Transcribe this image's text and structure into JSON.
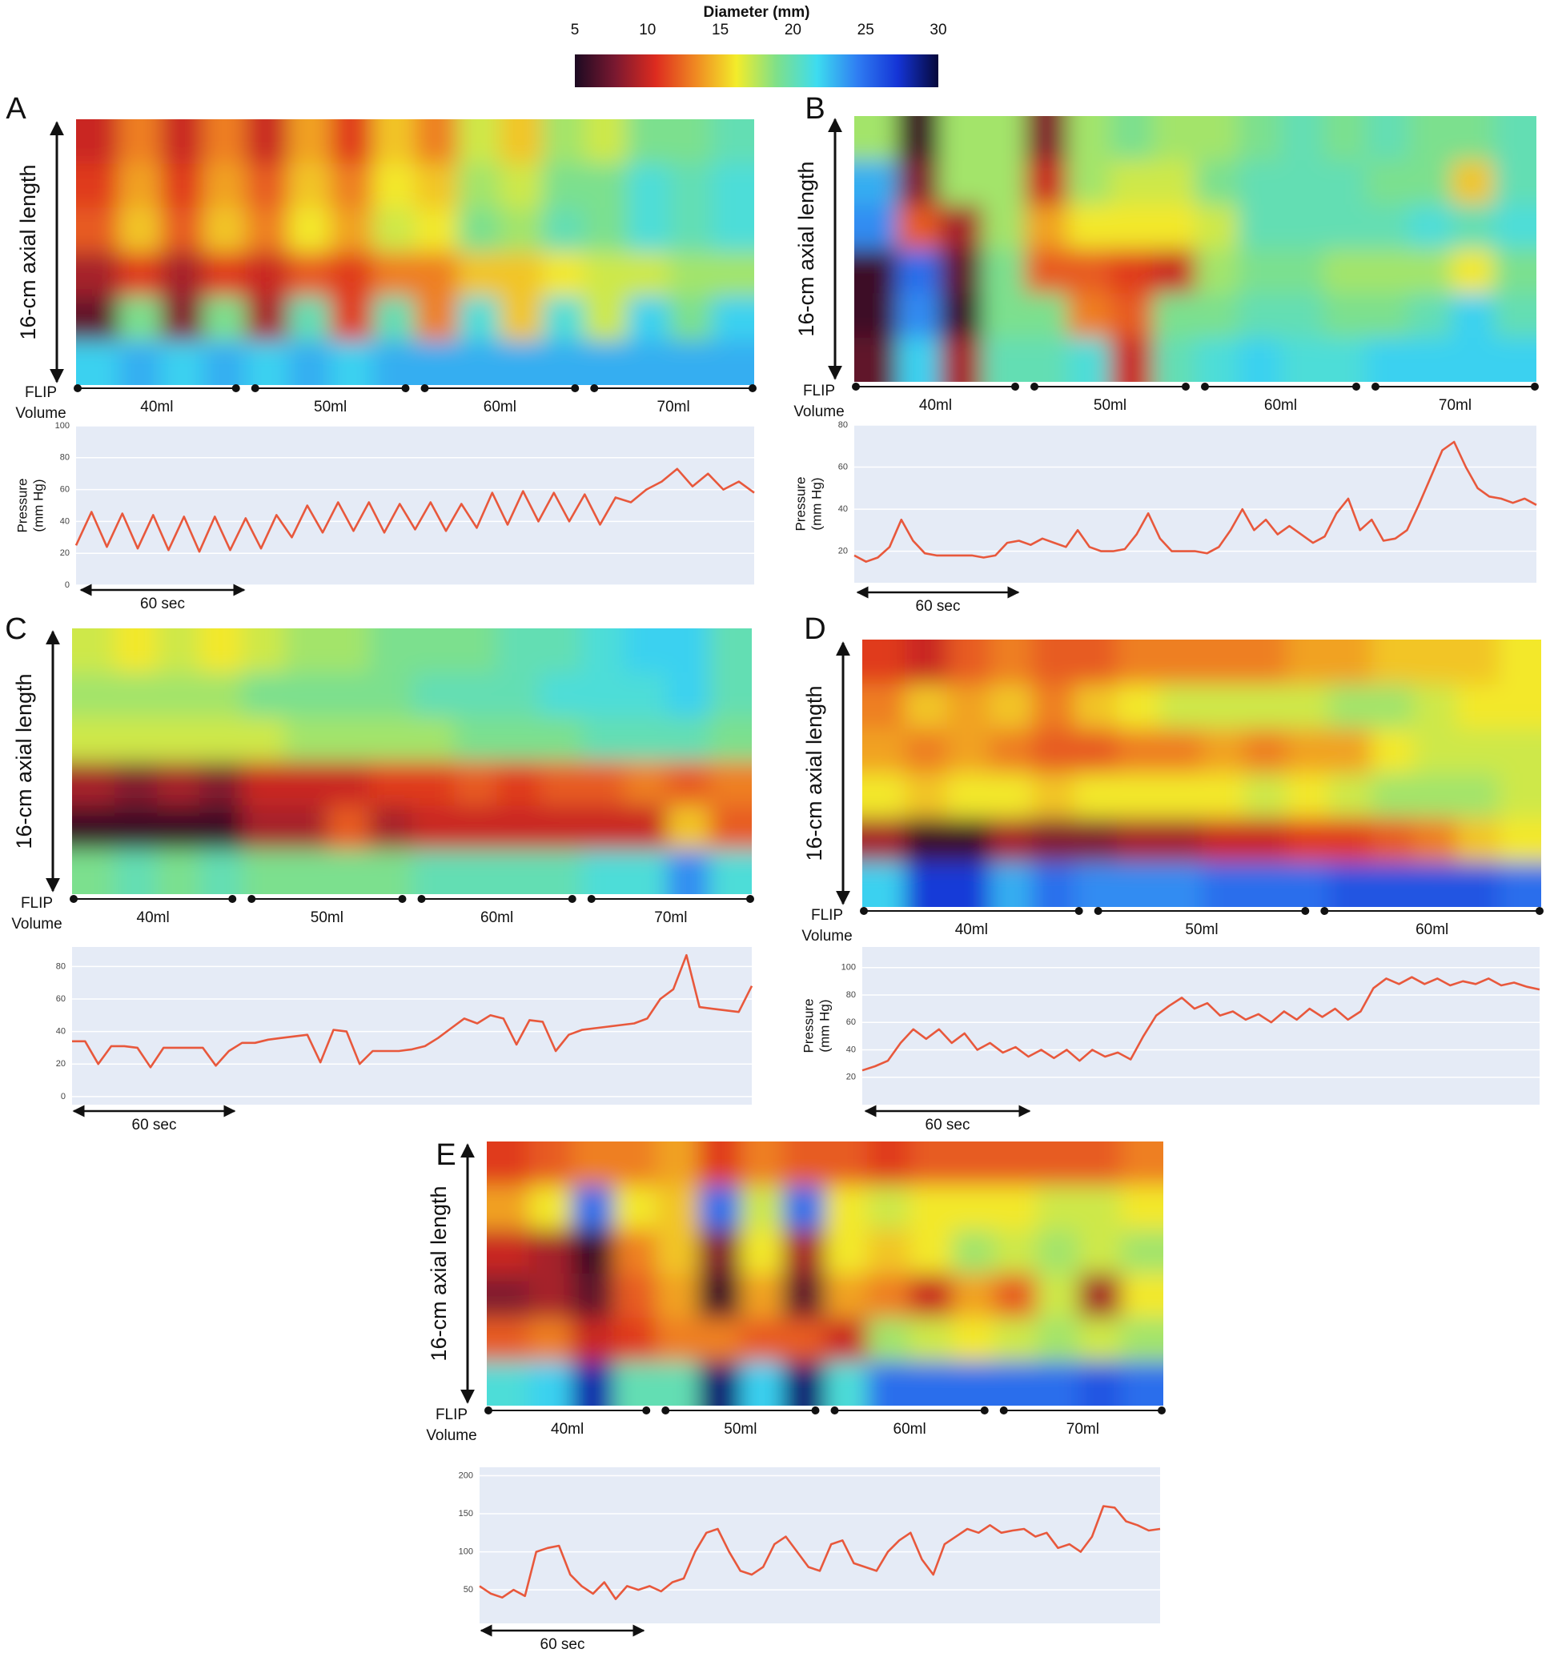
{
  "chart_data": [
    {
      "type": "colorbar",
      "title": "Diameter (mm)",
      "ticks": [
        5,
        10,
        15,
        20,
        25,
        30
      ],
      "lim": [
        5,
        30
      ],
      "colors": [
        "#1c0a22",
        "#7a1830",
        "#dd2b1f",
        "#f08a22",
        "#f3ec2a",
        "#7ee08a",
        "#3ddcf0",
        "#2f7df2",
        "#1434d6",
        "#06083a"
      ]
    },
    {
      "type": "panel",
      "label": "A",
      "heatmap": {
        "ylabel": "16-cm axial length",
        "values": [
          [
            10,
            13,
            10,
            13,
            10,
            14,
            11,
            15,
            13,
            17,
            15,
            18,
            17,
            19,
            19,
            20
          ],
          [
            11,
            14,
            11,
            14,
            12,
            15,
            13,
            16,
            15,
            18,
            17,
            19,
            19,
            21,
            20,
            21
          ],
          [
            12,
            15,
            12,
            15,
            13,
            16,
            14,
            17,
            16,
            19,
            18,
            20,
            19,
            21,
            20,
            21
          ],
          [
            9,
            11,
            9,
            11,
            10,
            12,
            11,
            13,
            13,
            15,
            15,
            16,
            17,
            17,
            18,
            18
          ],
          [
            7,
            19,
            8,
            19,
            9,
            20,
            11,
            20,
            13,
            21,
            15,
            21,
            17,
            22,
            19,
            22
          ],
          [
            22,
            23,
            22,
            23,
            22,
            23,
            22,
            23,
            23,
            23,
            23,
            23,
            23,
            23,
            23,
            23
          ]
        ]
      },
      "volume": {
        "label": [
          "FLIP",
          "Volume"
        ],
        "segments": [
          "40ml",
          "50ml",
          "60ml",
          "70ml"
        ]
      },
      "pressure": {
        "ylabel": [
          "Pressure",
          "(mm Hg)"
        ],
        "color": "#e8583c",
        "ylim": [
          0,
          100
        ],
        "yticks": [
          0,
          20,
          40,
          60,
          80,
          100
        ],
        "grid": true,
        "values": [
          25,
          46,
          24,
          45,
          23,
          44,
          22,
          43,
          21,
          43,
          22,
          42,
          23,
          44,
          30,
          50,
          33,
          52,
          34,
          52,
          33,
          51,
          35,
          52,
          34,
          51,
          36,
          58,
          38,
          59,
          40,
          58,
          40,
          57,
          38,
          55,
          52,
          60,
          65,
          73,
          62,
          70,
          60,
          65,
          58
        ]
      },
      "scale_bar": "60 sec"
    },
    {
      "type": "panel",
      "label": "B",
      "heatmap": {
        "ylabel": "16-cm axial length",
        "values": [
          [
            18,
            6,
            18,
            18,
            8,
            18,
            19,
            18,
            18,
            19,
            20,
            19,
            20,
            19,
            19,
            20
          ],
          [
            23,
            8,
            18,
            18,
            10,
            18,
            17,
            17,
            19,
            20,
            20,
            20,
            19,
            19,
            15,
            20
          ],
          [
            24,
            12,
            9,
            18,
            14,
            16,
            16,
            16,
            17,
            20,
            20,
            20,
            20,
            21,
            20,
            21
          ],
          [
            6,
            25,
            7,
            19,
            12,
            12,
            11,
            10,
            18,
            19,
            19,
            18,
            18,
            18,
            16,
            19
          ],
          [
            6,
            24,
            6,
            19,
            19,
            13,
            12,
            19,
            19,
            20,
            20,
            19,
            19,
            20,
            22,
            20
          ],
          [
            7,
            22,
            9,
            20,
            20,
            21,
            10,
            20,
            21,
            22,
            21,
            21,
            22,
            22,
            22,
            22
          ]
        ]
      },
      "volume": {
        "label": [
          "FLIP",
          "Volume"
        ],
        "segments": [
          "40ml",
          "50ml",
          "60ml",
          "70ml"
        ]
      },
      "pressure": {
        "ylabel": [
          "Pressure",
          "(mm Hg)"
        ],
        "color": "#e8583c",
        "ylim": [
          5,
          80
        ],
        "yticks": [
          20,
          40,
          60,
          80
        ],
        "grid": true,
        "values": [
          18,
          15,
          17,
          22,
          35,
          25,
          19,
          18,
          18,
          18,
          18,
          17,
          18,
          24,
          25,
          23,
          26,
          24,
          22,
          30,
          22,
          20,
          20,
          21,
          28,
          38,
          26,
          20,
          20,
          20,
          19,
          22,
          30,
          40,
          30,
          35,
          28,
          32,
          28,
          24,
          27,
          38,
          45,
          30,
          35,
          25,
          26,
          30,
          42,
          55,
          68,
          72,
          60,
          50,
          46,
          45,
          43,
          45,
          42
        ]
      },
      "scale_bar": "60 sec"
    },
    {
      "type": "panel",
      "label": "C",
      "heatmap": {
        "ylabel": "16-cm axial length",
        "values": [
          [
            17,
            16,
            17,
            16,
            17,
            18,
            18,
            19,
            19,
            19,
            20,
            20,
            21,
            22,
            22,
            20
          ],
          [
            18,
            18,
            18,
            18,
            19,
            19,
            19,
            19,
            20,
            20,
            20,
            21,
            21,
            21,
            22,
            20
          ],
          [
            17,
            17,
            17,
            17,
            17,
            18,
            18,
            18,
            18,
            19,
            19,
            19,
            20,
            20,
            20,
            19
          ],
          [
            9,
            8,
            9,
            8,
            10,
            10,
            10,
            11,
            11,
            12,
            11,
            12,
            12,
            13,
            12,
            13
          ],
          [
            6,
            6,
            6,
            6,
            9,
            9,
            12,
            9,
            10,
            10,
            10,
            10,
            10,
            10,
            15,
            12
          ],
          [
            19,
            20,
            19,
            20,
            19,
            19,
            19,
            19,
            20,
            20,
            20,
            20,
            21,
            21,
            24,
            21
          ]
        ]
      },
      "volume": {
        "label": [
          "FLIP",
          "Volume"
        ],
        "segments": [
          "40ml",
          "50ml",
          "60ml",
          "70ml"
        ]
      },
      "pressure": {
        "color": "#e8583c",
        "ylim": [
          -5,
          92
        ],
        "yticks": [
          0,
          20,
          40,
          60,
          80
        ],
        "grid": true,
        "values": [
          34,
          34,
          20,
          31,
          31,
          30,
          18,
          30,
          30,
          30,
          30,
          19,
          28,
          33,
          33,
          35,
          36,
          37,
          38,
          21,
          41,
          40,
          20,
          28,
          28,
          28,
          29,
          31,
          36,
          42,
          48,
          45,
          50,
          48,
          32,
          47,
          46,
          28,
          38,
          41,
          42,
          43,
          44,
          45,
          48,
          60,
          66,
          87,
          55,
          54,
          53,
          52,
          68
        ]
      },
      "scale_bar": "60 sec"
    },
    {
      "type": "panel",
      "label": "D",
      "heatmap": {
        "ylabel": "16-cm axial length",
        "values": [
          [
            11,
            10,
            12,
            13,
            12,
            12,
            13,
            13,
            13,
            13,
            14,
            14,
            15,
            15,
            15,
            16
          ],
          [
            13,
            15,
            14,
            15,
            13,
            15,
            16,
            17,
            17,
            17,
            17,
            18,
            18,
            17,
            16,
            16
          ],
          [
            14,
            13,
            14,
            13,
            12,
            12,
            13,
            13,
            14,
            13,
            14,
            14,
            16,
            17,
            17,
            17
          ],
          [
            16,
            15,
            16,
            16,
            15,
            16,
            16,
            16,
            16,
            17,
            16,
            17,
            18,
            18,
            18,
            17
          ],
          [
            9,
            6,
            6,
            9,
            8,
            8,
            9,
            9,
            10,
            10,
            11,
            11,
            12,
            13,
            15,
            16
          ],
          [
            22,
            27,
            27,
            23,
            25,
            24,
            24,
            24,
            25,
            25,
            25,
            26,
            26,
            26,
            26,
            25
          ]
        ]
      },
      "volume": {
        "label": [
          "FLIP",
          "Volume"
        ],
        "segments": [
          "40ml",
          "50ml",
          "60ml"
        ]
      },
      "pressure": {
        "ylabel": [
          "Pressure",
          "(mm Hg)"
        ],
        "color": "#e8583c",
        "ylim": [
          0,
          115
        ],
        "yticks": [
          20,
          40,
          60,
          80,
          100
        ],
        "grid": true,
        "values": [
          25,
          28,
          32,
          45,
          55,
          48,
          55,
          45,
          52,
          40,
          45,
          38,
          42,
          35,
          40,
          34,
          40,
          32,
          40,
          35,
          38,
          33,
          50,
          65,
          72,
          78,
          70,
          74,
          65,
          68,
          62,
          66,
          60,
          68,
          62,
          70,
          64,
          70,
          62,
          68,
          85,
          92,
          88,
          93,
          88,
          92,
          87,
          90,
          88,
          92,
          87,
          89,
          86,
          84
        ]
      },
      "scale_bar": "60 sec"
    },
    {
      "type": "panel",
      "label": "E",
      "heatmap": {
        "ylabel": "16-cm axial length",
        "values": [
          [
            11,
            12,
            13,
            13,
            14,
            11,
            13,
            12,
            12,
            11,
            12,
            12,
            12,
            12,
            12,
            13
          ],
          [
            14,
            16,
            25,
            16,
            15,
            25,
            17,
            25,
            16,
            17,
            16,
            16,
            16,
            17,
            17,
            16
          ],
          [
            10,
            9,
            6,
            13,
            15,
            8,
            16,
            9,
            16,
            15,
            16,
            18,
            17,
            18,
            17,
            18
          ],
          [
            8,
            9,
            7,
            12,
            14,
            6,
            14,
            7,
            14,
            13,
            10,
            14,
            12,
            17,
            9,
            16
          ],
          [
            12,
            13,
            10,
            11,
            13,
            13,
            12,
            12,
            10,
            18,
            17,
            16,
            17,
            18,
            17,
            18
          ],
          [
            21,
            22,
            28,
            20,
            20,
            29,
            22,
            29,
            21,
            25,
            25,
            25,
            25,
            25,
            26,
            25
          ]
        ]
      },
      "volume": {
        "label": [
          "FLIP",
          "Volume"
        ],
        "segments": [
          "40ml",
          "50ml",
          "60ml",
          "70ml"
        ]
      },
      "pressure": {
        "color": "#e8583c",
        "ylim": [
          6,
          211
        ],
        "yticks": [
          50,
          100,
          150,
          200
        ],
        "grid": true,
        "values": [
          55,
          45,
          40,
          50,
          42,
          100,
          105,
          108,
          70,
          55,
          45,
          60,
          38,
          55,
          50,
          55,
          48,
          60,
          65,
          100,
          125,
          130,
          100,
          75,
          70,
          80,
          110,
          120,
          100,
          80,
          75,
          110,
          115,
          85,
          80,
          75,
          100,
          115,
          125,
          90,
          70,
          110,
          120,
          130,
          125,
          135,
          125,
          128,
          130,
          120,
          125,
          105,
          110,
          100,
          120,
          160,
          158,
          140,
          135,
          128,
          130
        ]
      },
      "scale_bar": "60 sec"
    }
  ]
}
